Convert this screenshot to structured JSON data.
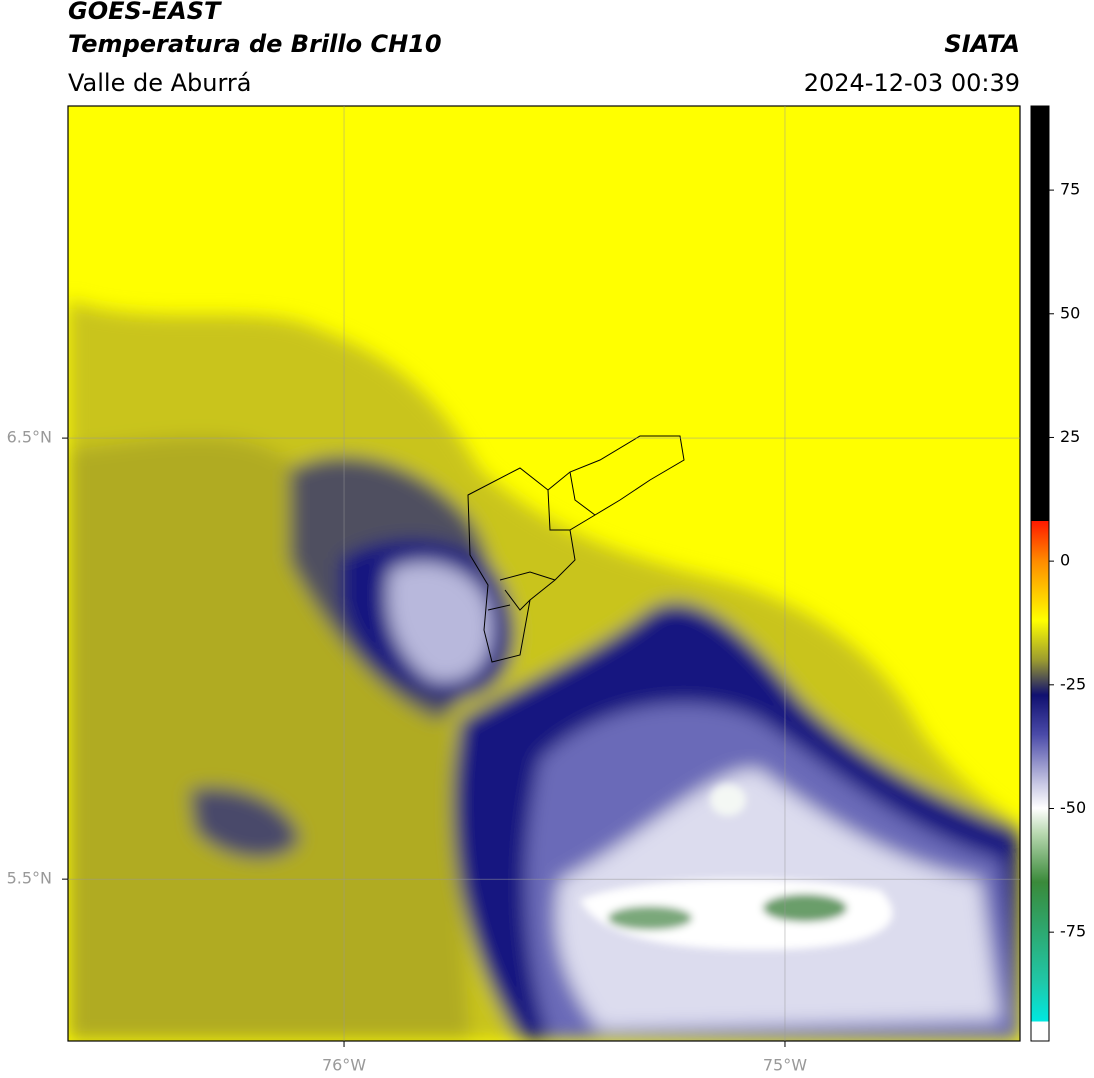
{
  "header": {
    "title": "GOES-EAST",
    "product": "Temperatura de Brillo CH10",
    "region": "Valle de Aburrá",
    "source": "SIATA",
    "datetime": "2024-12-03 00:39"
  },
  "map": {
    "xlim": [
      -76.626,
      -74.467
    ],
    "ylim": [
      5.133,
      7.253
    ],
    "xticks": [
      {
        "value": -76,
        "label": "76°W"
      },
      {
        "value": -75,
        "label": "75°W"
      }
    ],
    "yticks": [
      {
        "value": 6.5,
        "label": "6.5°N"
      },
      {
        "value": 5.5,
        "label": "5.5°N"
      }
    ]
  },
  "colorbar": {
    "clim": [
      -97,
      92
    ],
    "ticks": [
      75,
      50,
      25,
      0,
      -25,
      -50,
      -75
    ]
  }
}
